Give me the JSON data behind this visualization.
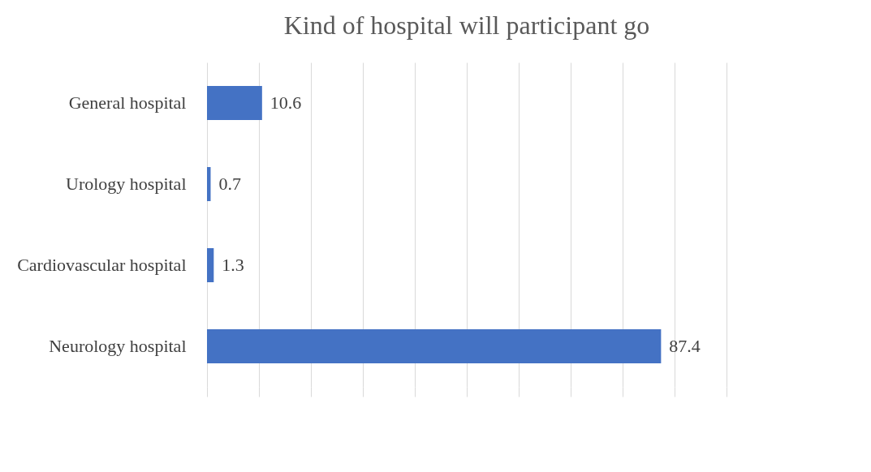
{
  "chart_data": {
    "type": "bar",
    "orientation": "horizontal",
    "title": "Kind of hospital will participant go",
    "categories": [
      "General hospital",
      "Urology hospital",
      "Cardiovascular hospital",
      "Neurology hospital"
    ],
    "values": [
      10.6,
      0.7,
      1.3,
      87.4
    ],
    "color": "#4472c4",
    "data_labels": true,
    "xlim": [
      0,
      100
    ],
    "xticks": [
      {
        "value": 0,
        "label": null
      },
      {
        "value": 10,
        "label": null
      },
      {
        "value": 20,
        "label": null
      },
      {
        "value": 30,
        "label": null
      },
      {
        "value": 40,
        "label": null
      },
      {
        "value": 50,
        "label": null
      },
      {
        "value": 60,
        "label": null
      },
      {
        "value": 70,
        "label": null
      },
      {
        "value": 80,
        "label": null
      },
      {
        "value": 90,
        "label": null
      },
      {
        "value": 100,
        "label": null
      }
    ],
    "grid": "x",
    "tick_labels": "y"
  }
}
